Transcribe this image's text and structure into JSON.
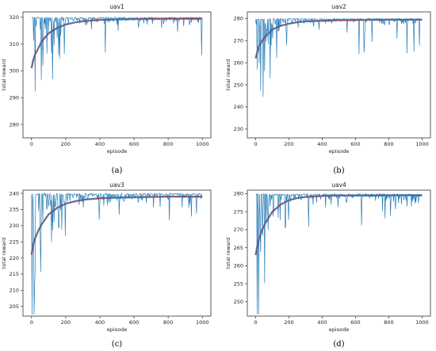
{
  "chart_data": [
    {
      "type": "line",
      "title": "uav1",
      "xlabel": "episode",
      "ylabel": "total reward",
      "caption": "(a)",
      "xlim": [
        -50,
        1050
      ],
      "ylim": [
        275,
        322
      ],
      "xticks": [
        0,
        200,
        400,
        600,
        800,
        1000
      ],
      "yticks": [
        280,
        290,
        300,
        310,
        320
      ],
      "max": 320,
      "series": [
        {
          "color": "#1f77b4",
          "x": [
            0,
            10,
            20,
            40,
            60,
            80,
            100,
            150,
            200,
            250,
            300,
            400,
            500,
            600,
            700,
            800,
            900,
            1000
          ],
          "y": [
            301,
            304,
            306,
            308.5,
            311,
            312.5,
            314,
            316,
            317.3,
            318,
            318.5,
            319,
            319.2,
            319.3,
            319.4,
            319.5,
            319.5,
            319.5
          ]
        },
        {
          "color": "#d62728",
          "x": [
            0,
            10,
            20,
            40,
            60,
            80,
            100,
            150,
            200,
            250,
            300,
            400,
            500,
            600,
            700,
            800,
            900,
            1000
          ],
          "y": [
            301,
            304,
            306,
            308.5,
            311,
            312.5,
            314,
            316,
            317.3,
            318,
            318.5,
            319,
            319.2,
            319.3,
            319.4,
            319.5,
            319.5,
            319.5
          ]
        }
      ]
    },
    {
      "type": "line",
      "title": "uav2",
      "xlabel": "episode",
      "ylabel": "total reward",
      "caption": "(b)",
      "xlim": [
        -50,
        1050
      ],
      "ylim": [
        226,
        283
      ],
      "xticks": [
        0,
        200,
        400,
        600,
        800,
        1000
      ],
      "yticks": [
        230,
        240,
        250,
        260,
        270,
        280
      ],
      "max": 280,
      "series": [
        {
          "color": "#1f77b4",
          "x": [
            0,
            10,
            20,
            40,
            60,
            80,
            100,
            150,
            200,
            250,
            300,
            400,
            500,
            600,
            700,
            800,
            900,
            1000
          ],
          "y": [
            262,
            265,
            267.5,
            270,
            272,
            273.5,
            275,
            276.7,
            277.7,
            278.3,
            278.7,
            279,
            279.2,
            279.3,
            279.4,
            279.5,
            279.5,
            279.5
          ]
        },
        {
          "color": "#d62728",
          "x": [
            0,
            10,
            20,
            40,
            60,
            80,
            100,
            150,
            200,
            250,
            300,
            400,
            500,
            600,
            700,
            800,
            900,
            1000
          ],
          "y": [
            262,
            265,
            267.5,
            270,
            272,
            273.5,
            275,
            276.7,
            277.7,
            278.3,
            278.7,
            279,
            279.2,
            279.3,
            279.4,
            279.5,
            279.5,
            279.5
          ]
        }
      ]
    },
    {
      "type": "line",
      "title": "uav3",
      "xlabel": "episode",
      "ylabel": "total reward",
      "caption": "(c)",
      "xlim": [
        -50,
        1050
      ],
      "ylim": [
        202,
        241
      ],
      "xticks": [
        0,
        200,
        400,
        600,
        800,
        1000
      ],
      "yticks": [
        205,
        210,
        215,
        220,
        225,
        230,
        235,
        240
      ],
      "max": 240,
      "series": [
        {
          "color": "#1f77b4",
          "x": [
            0,
            10,
            20,
            40,
            60,
            80,
            100,
            150,
            200,
            250,
            300,
            400,
            500,
            600,
            700,
            800,
            900,
            1000
          ],
          "y": [
            221,
            224,
            226,
            228.5,
            230.5,
            232,
            233.5,
            235.5,
            236.8,
            237.5,
            238,
            238.5,
            238.7,
            238.8,
            238.9,
            239,
            239,
            239
          ]
        },
        {
          "color": "#d62728",
          "x": [
            0,
            10,
            20,
            40,
            60,
            80,
            100,
            150,
            200,
            250,
            300,
            400,
            500,
            600,
            700,
            800,
            900,
            1000
          ],
          "y": [
            221,
            224,
            226,
            228.5,
            230.5,
            232,
            233.5,
            235.5,
            236.8,
            237.5,
            238,
            238.5,
            238.7,
            238.8,
            238.9,
            239,
            239,
            239
          ]
        }
      ]
    },
    {
      "type": "line",
      "title": "uav4",
      "xlabel": "episode",
      "ylabel": "total reward",
      "caption": "(d)",
      "xlim": [
        -50,
        1050
      ],
      "ylim": [
        246,
        281
      ],
      "xticks": [
        0,
        200,
        400,
        600,
        800,
        1000
      ],
      "yticks": [
        250,
        255,
        260,
        265,
        270,
        275,
        280
      ],
      "max": 280,
      "series": [
        {
          "color": "#1f77b4",
          "x": [
            0,
            10,
            20,
            40,
            60,
            80,
            100,
            150,
            200,
            250,
            300,
            400,
            500,
            600,
            700,
            800,
            900,
            1000
          ],
          "y": [
            263,
            265.5,
            267.5,
            270,
            272,
            273.5,
            275,
            277,
            278.2,
            278.8,
            279.1,
            279.4,
            279.5,
            279.5,
            279.5,
            279.6,
            279.6,
            279.6
          ]
        },
        {
          "color": "#d62728",
          "x": [
            0,
            10,
            20,
            40,
            60,
            80,
            100,
            150,
            200,
            250,
            300,
            400,
            500,
            600,
            700,
            800,
            900,
            1000
          ],
          "y": [
            263,
            265.5,
            267.5,
            270,
            272,
            273.5,
            275,
            277,
            278.2,
            278.8,
            279.1,
            279.4,
            279.5,
            279.5,
            279.5,
            279.6,
            279.6,
            279.6
          ]
        }
      ]
    }
  ]
}
